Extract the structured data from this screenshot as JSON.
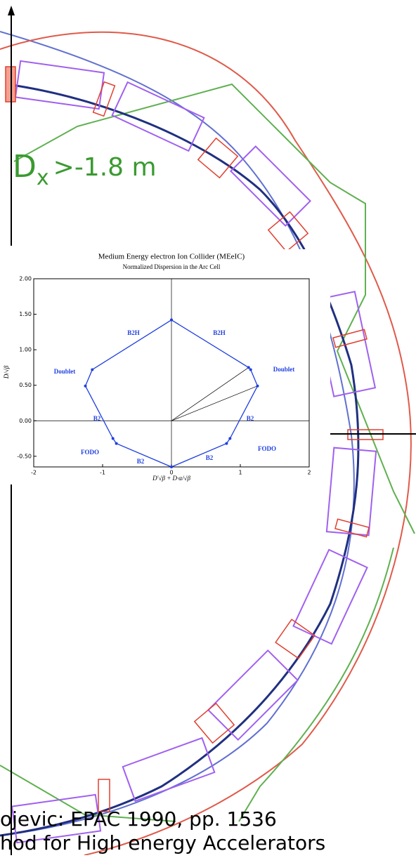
{
  "chart_data": {
    "type": "line",
    "title": "Medium Energy electron Ion Collider (MEeIC)",
    "subtitle": "Normalized Dispersion in the Arc Cell",
    "x_label": "D′√β + D·α/√β",
    "y_label": "D/√β",
    "x": [
      0,
      1.12,
      1.15,
      1.25,
      0.85,
      0.8,
      0,
      -0.8,
      -0.85,
      -1.25,
      -1.15,
      0
    ],
    "series": [
      {
        "color": "#1f3fe0",
        "values": [
          1.42,
          0.75,
          0.72,
          0.49,
          -0.25,
          -0.32,
          -0.65,
          -0.32,
          -0.25,
          0.49,
          0.72,
          1.42
        ]
      }
    ],
    "xlim": [
      -2,
      2
    ],
    "xticks": [
      -2,
      -1,
      0,
      1,
      2
    ],
    "ylim": [
      -0.65,
      2.0
    ],
    "yticks": [
      {
        "value": -0.5,
        "label": "-0.50"
      },
      {
        "value": 0,
        "label": "0.00"
      },
      {
        "value": 0.5,
        "label": "0.50"
      },
      {
        "value": 1,
        "label": "1.00"
      },
      {
        "value": 1.5,
        "label": "1.50"
      },
      {
        "value": 2,
        "label": "2.00"
      }
    ],
    "annotations": [
      "B2H",
      "B2H",
      "Doublet",
      "Doublet",
      "B2",
      "B2",
      "FODO",
      "FODO",
      "B2",
      "B2"
    ]
  },
  "background": {
    "dispersion_label": {
      "main": "D",
      "subscript": "x",
      "rest": ">-1.8 m"
    },
    "citation_lines": [
      "ojevic: EPAC 1990, pp. 1536",
      "hod for High energy Accelerators"
    ]
  }
}
